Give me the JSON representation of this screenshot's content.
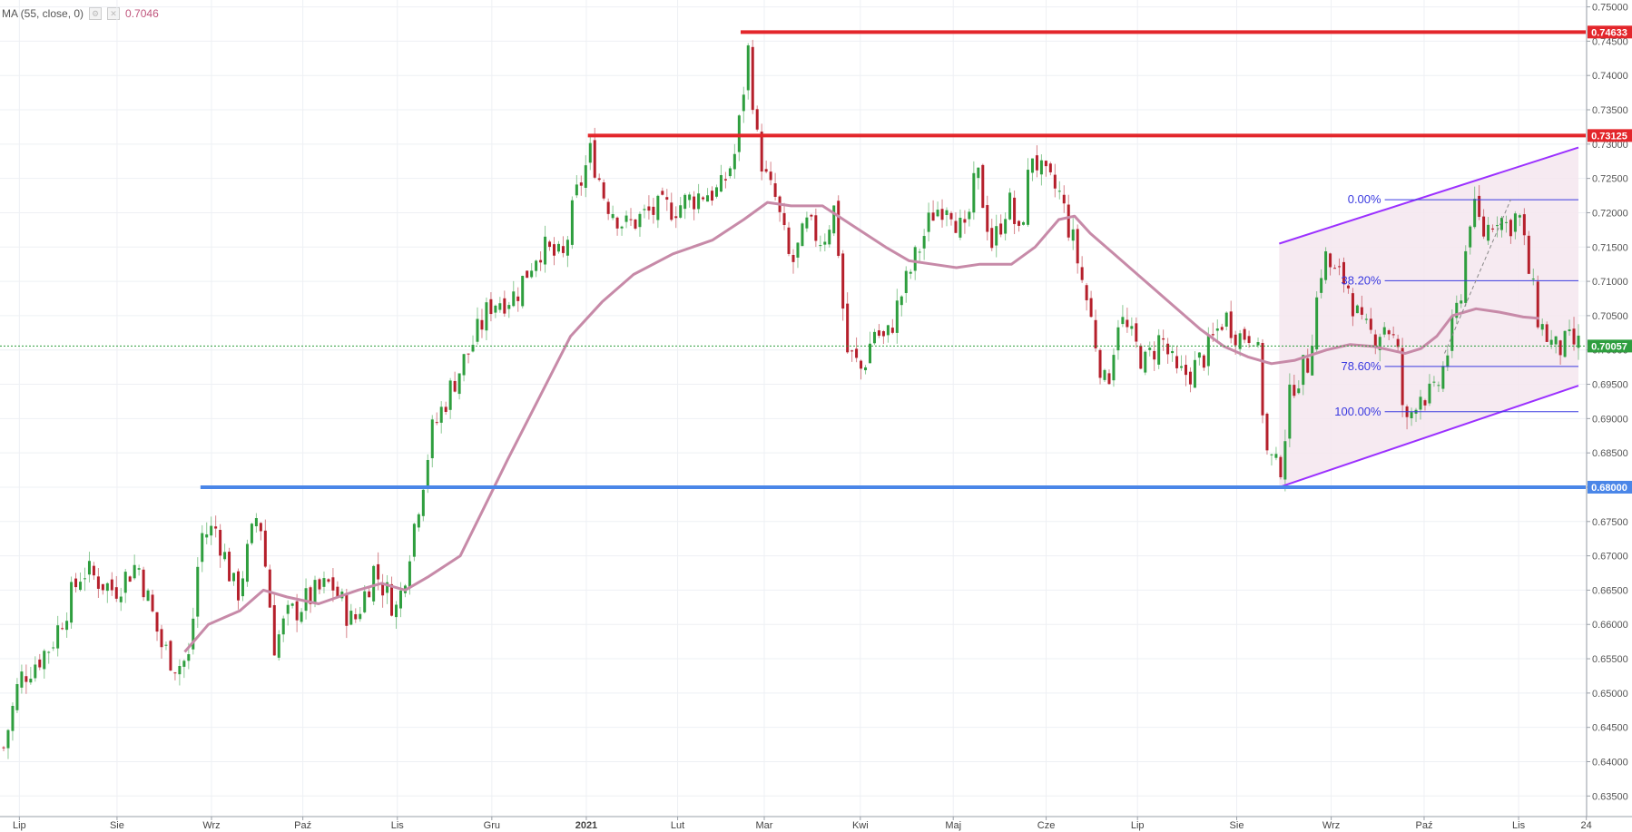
{
  "indicator": {
    "label": "MA (55, close, 0)",
    "value": "0.7046",
    "icons": [
      "settings-icon",
      "close-icon"
    ]
  },
  "colors": {
    "up": "#2e9e3e",
    "down": "#b51f2b",
    "ma": "#c78aa8",
    "resistance": "#e3262b",
    "support": "#4a86e8",
    "channel": "#9b30ff",
    "channel_fill": "#f5e6ef",
    "fib": "#3a3ae0",
    "last_price": "#2e9e3e"
  },
  "chart_data": {
    "type": "candlestick",
    "y_axis": {
      "ylim": [
        0.632,
        0.751
      ],
      "ticks": [
        "0.75000",
        "0.74500",
        "0.74000",
        "0.73500",
        "0.73000",
        "0.72500",
        "0.72000",
        "0.71500",
        "0.71000",
        "0.70500",
        "0.70000",
        "0.69500",
        "0.69000",
        "0.68500",
        "0.68000",
        "0.67500",
        "0.67000",
        "0.66500",
        "0.66000",
        "0.65500",
        "0.65000",
        "0.64500",
        "0.64000",
        "0.63500"
      ]
    },
    "x_axis": {
      "ticks": [
        {
          "label": "Lip",
          "pos": 0.01
        },
        {
          "label": "Sie",
          "pos": 0.072
        },
        {
          "label": "Wrz",
          "pos": 0.132
        },
        {
          "label": "Paź",
          "pos": 0.19
        },
        {
          "label": "Lis",
          "pos": 0.25
        },
        {
          "label": "Gru",
          "pos": 0.31
        },
        {
          "label": "2021",
          "pos": 0.37,
          "bold": true
        },
        {
          "label": "Lut",
          "pos": 0.428
        },
        {
          "label": "Mar",
          "pos": 0.483
        },
        {
          "label": "Kwi",
          "pos": 0.544
        },
        {
          "label": "Maj",
          "pos": 0.603
        },
        {
          "label": "Cze",
          "pos": 0.662
        },
        {
          "label": "Lip",
          "pos": 0.72
        },
        {
          "label": "Sie",
          "pos": 0.783
        },
        {
          "label": "Wrz",
          "pos": 0.843
        },
        {
          "label": "Paź",
          "pos": 0.902
        },
        {
          "label": "Lis",
          "pos": 0.962
        },
        {
          "label": "24",
          "pos": 1.005
        }
      ]
    },
    "close_path": [
      [
        0,
        0.642
      ],
      [
        0.01,
        0.652
      ],
      [
        0.03,
        0.657
      ],
      [
        0.05,
        0.668
      ],
      [
        0.07,
        0.665
      ],
      [
        0.085,
        0.669
      ],
      [
        0.1,
        0.657
      ],
      [
        0.11,
        0.654
      ],
      [
        0.118,
        0.655
      ],
      [
        0.125,
        0.673
      ],
      [
        0.135,
        0.674
      ],
      [
        0.148,
        0.664
      ],
      [
        0.162,
        0.677
      ],
      [
        0.172,
        0.657
      ],
      [
        0.18,
        0.661
      ],
      [
        0.195,
        0.664
      ],
      [
        0.208,
        0.666
      ],
      [
        0.222,
        0.66
      ],
      [
        0.235,
        0.668
      ],
      [
        0.25,
        0.662
      ],
      [
        0.262,
        0.676
      ],
      [
        0.272,
        0.688
      ],
      [
        0.285,
        0.695
      ],
      [
        0.3,
        0.702
      ],
      [
        0.31,
        0.707
      ],
      [
        0.325,
        0.708
      ],
      [
        0.34,
        0.715
      ],
      [
        0.355,
        0.713
      ],
      [
        0.363,
        0.722
      ],
      [
        0.373,
        0.729
      ],
      [
        0.382,
        0.722
      ],
      [
        0.395,
        0.718
      ],
      [
        0.41,
        0.72
      ],
      [
        0.428,
        0.721
      ],
      [
        0.445,
        0.723
      ],
      [
        0.455,
        0.723
      ],
      [
        0.465,
        0.729
      ],
      [
        0.473,
        0.744
      ],
      [
        0.478,
        0.731
      ],
      [
        0.485,
        0.724
      ],
      [
        0.49,
        0.722
      ],
      [
        0.5,
        0.712
      ],
      [
        0.51,
        0.718
      ],
      [
        0.52,
        0.716
      ],
      [
        0.528,
        0.721
      ],
      [
        0.535,
        0.7
      ],
      [
        0.545,
        0.697
      ],
      [
        0.553,
        0.703
      ],
      [
        0.56,
        0.701
      ],
      [
        0.57,
        0.708
      ],
      [
        0.58,
        0.714
      ],
      [
        0.59,
        0.72
      ],
      [
        0.6,
        0.722
      ],
      [
        0.61,
        0.716
      ],
      [
        0.618,
        0.726
      ],
      [
        0.628,
        0.715
      ],
      [
        0.638,
        0.722
      ],
      [
        0.645,
        0.716
      ],
      [
        0.653,
        0.729
      ],
      [
        0.66,
        0.725
      ],
      [
        0.67,
        0.723
      ],
      [
        0.68,
        0.715
      ],
      [
        0.69,
        0.705
      ],
      [
        0.7,
        0.694
      ],
      [
        0.708,
        0.705
      ],
      [
        0.715,
        0.702
      ],
      [
        0.725,
        0.698
      ],
      [
        0.735,
        0.702
      ],
      [
        0.745,
        0.696
      ],
      [
        0.755,
        0.697
      ],
      [
        0.765,
        0.7
      ],
      [
        0.775,
        0.705
      ],
      [
        0.785,
        0.702
      ],
      [
        0.795,
        0.703
      ],
      [
        0.802,
        0.685
      ],
      [
        0.81,
        0.682
      ],
      [
        0.818,
        0.695
      ],
      [
        0.828,
        0.698
      ],
      [
        0.838,
        0.714
      ],
      [
        0.845,
        0.711
      ],
      [
        0.853,
        0.71
      ],
      [
        0.862,
        0.703
      ],
      [
        0.87,
        0.702
      ],
      [
        0.878,
        0.704
      ],
      [
        0.885,
        0.7
      ],
      [
        0.89,
        0.688
      ],
      [
        0.898,
        0.694
      ],
      [
        0.908,
        0.693
      ],
      [
        0.915,
        0.698
      ],
      [
        0.925,
        0.708
      ],
      [
        0.932,
        0.721
      ],
      [
        0.94,
        0.717
      ],
      [
        0.948,
        0.72
      ],
      [
        0.955,
        0.718
      ],
      [
        0.962,
        0.72
      ],
      [
        0.968,
        0.712
      ],
      [
        0.975,
        0.704
      ],
      [
        0.985,
        0.7
      ],
      [
        0.995,
        0.701
      ],
      [
        1.0,
        0.7006
      ]
    ],
    "ma_path": [
      [
        0.115,
        0.656
      ],
      [
        0.13,
        0.66
      ],
      [
        0.15,
        0.662
      ],
      [
        0.165,
        0.665
      ],
      [
        0.18,
        0.664
      ],
      [
        0.2,
        0.663
      ],
      [
        0.225,
        0.665
      ],
      [
        0.24,
        0.666
      ],
      [
        0.255,
        0.665
      ],
      [
        0.27,
        0.667
      ],
      [
        0.29,
        0.67
      ],
      [
        0.305,
        0.677
      ],
      [
        0.32,
        0.684
      ],
      [
        0.34,
        0.693
      ],
      [
        0.36,
        0.702
      ],
      [
        0.38,
        0.707
      ],
      [
        0.4,
        0.711
      ],
      [
        0.425,
        0.714
      ],
      [
        0.45,
        0.716
      ],
      [
        0.47,
        0.719
      ],
      [
        0.485,
        0.7215
      ],
      [
        0.5,
        0.721
      ],
      [
        0.52,
        0.721
      ],
      [
        0.54,
        0.718
      ],
      [
        0.56,
        0.715
      ],
      [
        0.575,
        0.713
      ],
      [
        0.59,
        0.7125
      ],
      [
        0.605,
        0.712
      ],
      [
        0.62,
        0.7125
      ],
      [
        0.64,
        0.7125
      ],
      [
        0.655,
        0.715
      ],
      [
        0.67,
        0.719
      ],
      [
        0.68,
        0.7195
      ],
      [
        0.69,
        0.717
      ],
      [
        0.705,
        0.714
      ],
      [
        0.72,
        0.711
      ],
      [
        0.74,
        0.707
      ],
      [
        0.76,
        0.703
      ],
      [
        0.775,
        0.7005
      ],
      [
        0.79,
        0.699
      ],
      [
        0.805,
        0.698
      ],
      [
        0.82,
        0.6985
      ],
      [
        0.84,
        0.7
      ],
      [
        0.855,
        0.7008
      ],
      [
        0.87,
        0.7005
      ],
      [
        0.88,
        0.7
      ],
      [
        0.89,
        0.6995
      ],
      [
        0.9,
        0.7002
      ],
      [
        0.91,
        0.702
      ],
      [
        0.92,
        0.705
      ],
      [
        0.935,
        0.706
      ],
      [
        0.95,
        0.7055
      ],
      [
        0.965,
        0.7048
      ],
      [
        0.975,
        0.7046
      ]
    ],
    "horizontal_levels": [
      {
        "name": "resistance-high",
        "value": 0.74633,
        "label": "0.74633",
        "x_start": 0.468,
        "color": "#e3262b"
      },
      {
        "name": "resistance-mid",
        "value": 0.73125,
        "label": "0.73125",
        "x_start": 0.371,
        "color": "#e3262b"
      },
      {
        "name": "support",
        "value": 0.68,
        "label": "0.68000",
        "x_start": 0.125,
        "color": "#4a86e8"
      }
    ],
    "last_price": {
      "value": 0.70057,
      "label": "0.70057"
    },
    "channel": {
      "upper": [
        [
          0.81,
          0.7155
        ],
        [
          1.0,
          0.7295
        ]
      ],
      "lower": [
        [
          0.81,
          0.68
        ],
        [
          1.0,
          0.6948
        ]
      ]
    },
    "fibonacci": {
      "x_start": 0.877,
      "x_end": 1.0,
      "levels": [
        {
          "label": "0.00%",
          "value": 0.7219
        },
        {
          "label": "38.20%",
          "value": 0.7101
        },
        {
          "label": "78.60%",
          "value": 0.6976
        },
        {
          "label": "100.00%",
          "value": 0.691
        }
      ]
    },
    "fib_trend": [
      [
        0.915,
        0.6995
      ],
      [
        0.957,
        0.7219
      ]
    ]
  }
}
